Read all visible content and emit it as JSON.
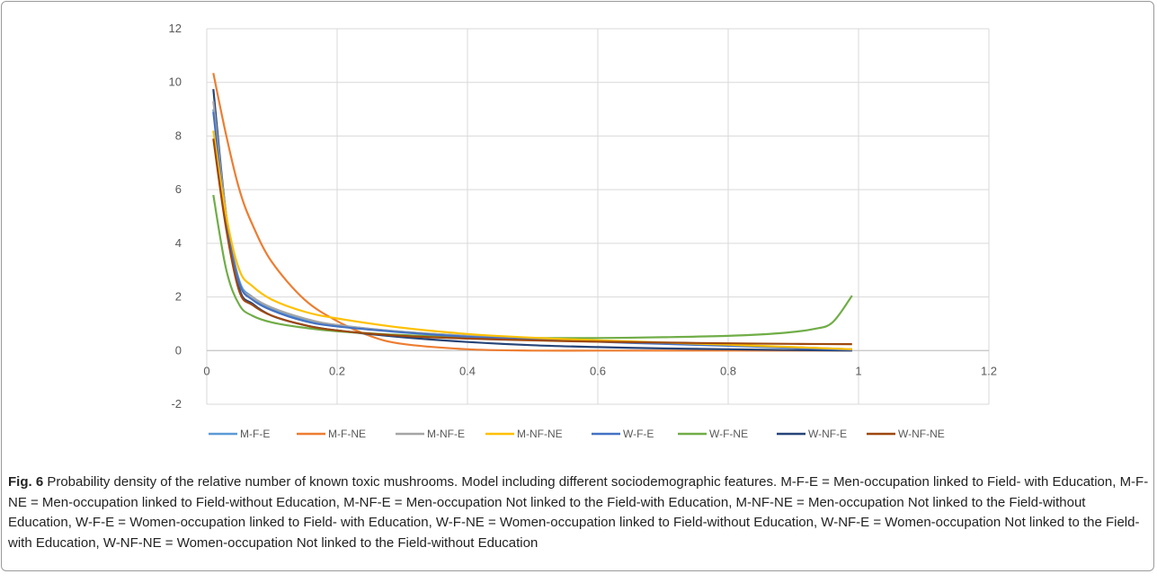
{
  "caption": {
    "label": "Fig. 6",
    "text": " Probability density of the relative number of known toxic mushrooms. Model including different sociodemographic features. M-F-E = Men-occupation linked to Field- with Education, M-F-NE = Men-occupation linked to Field-without Education, M-NF-E = Men-occupation Not linked to the Field-with Education, M-NF-NE = Men-occupation Not linked to the Field-without Education, W-F-E = Women-occupation linked to Field- with Education, W-F-NE = Women-occupation linked to Field-without Education, W-NF-E = Women-occupation Not linked to the Field-with Education, W-NF-NE = Women-occupation Not linked to the Field-without Education"
  },
  "chart_data": {
    "type": "line",
    "title": "",
    "xlabel": "",
    "ylabel": "",
    "xlim": [
      0,
      1.2
    ],
    "ylim": [
      -2,
      12
    ],
    "xticks": [
      0,
      0.2,
      0.4,
      0.6,
      0.8,
      1,
      1.2
    ],
    "yticks": [
      -2,
      0,
      2,
      4,
      6,
      8,
      10,
      12
    ],
    "xtick_labels": [
      "0",
      "0.2",
      "0.4",
      "0.6",
      "0.8",
      "1",
      "1.2"
    ],
    "ytick_labels": [
      "-2",
      "0",
      "2",
      "4",
      "6",
      "8",
      "10",
      "12"
    ],
    "grid": true,
    "legend_position": "bottom",
    "series": [
      {
        "name": "M-F-E",
        "color": "#5b9bd5",
        "x": [
          0.01,
          0.03,
          0.05,
          0.07,
          0.1,
          0.15,
          0.2,
          0.3,
          0.4,
          0.5,
          0.6,
          0.7,
          0.8,
          0.9,
          0.99
        ],
        "y": [
          9.0,
          5.0,
          2.6,
          2.0,
          1.55,
          1.15,
          0.95,
          0.7,
          0.55,
          0.45,
          0.35,
          0.27,
          0.2,
          0.12,
          0.05
        ]
      },
      {
        "name": "M-F-NE",
        "color": "#ed7d31",
        "x": [
          0.01,
          0.03,
          0.05,
          0.07,
          0.1,
          0.15,
          0.2,
          0.25,
          0.3,
          0.4,
          0.5,
          0.6,
          0.7,
          0.8,
          0.9,
          0.99
        ],
        "y": [
          10.35,
          8.0,
          6.0,
          4.7,
          3.3,
          1.9,
          1.1,
          0.55,
          0.25,
          0.05,
          0.0,
          0.0,
          0.0,
          0.0,
          0.0,
          0.0
        ]
      },
      {
        "name": "M-NF-E",
        "color": "#a5a5a5",
        "x": [
          0.01,
          0.03,
          0.05,
          0.07,
          0.1,
          0.15,
          0.2,
          0.3,
          0.4,
          0.5,
          0.6,
          0.7,
          0.8,
          0.9,
          0.99
        ],
        "y": [
          9.3,
          5.0,
          2.5,
          2.0,
          1.6,
          1.2,
          0.95,
          0.7,
          0.55,
          0.45,
          0.35,
          0.27,
          0.2,
          0.12,
          0.05
        ]
      },
      {
        "name": "M-NF-NE",
        "color": "#ffc000",
        "x": [
          0.01,
          0.03,
          0.05,
          0.07,
          0.1,
          0.15,
          0.2,
          0.3,
          0.4,
          0.5,
          0.6,
          0.7,
          0.8,
          0.9,
          0.99
        ],
        "y": [
          8.2,
          5.0,
          3.0,
          2.4,
          1.9,
          1.45,
          1.2,
          0.85,
          0.62,
          0.48,
          0.38,
          0.3,
          0.22,
          0.13,
          0.05
        ]
      },
      {
        "name": "W-F-E",
        "color": "#4472c4",
        "x": [
          0.01,
          0.03,
          0.05,
          0.07,
          0.1,
          0.15,
          0.2,
          0.3,
          0.4,
          0.5,
          0.6,
          0.7,
          0.8,
          0.9,
          0.99
        ],
        "y": [
          8.9,
          4.8,
          2.5,
          1.9,
          1.5,
          1.1,
          0.9,
          0.68,
          0.52,
          0.42,
          0.33,
          0.25,
          0.18,
          0.1,
          0.03
        ]
      },
      {
        "name": "W-F-NE",
        "color": "#70ad47",
        "x": [
          0.01,
          0.03,
          0.05,
          0.07,
          0.1,
          0.15,
          0.2,
          0.3,
          0.4,
          0.5,
          0.6,
          0.7,
          0.8,
          0.88,
          0.93,
          0.96,
          0.99
        ],
        "y": [
          5.8,
          3.0,
          1.7,
          1.3,
          1.05,
          0.85,
          0.72,
          0.58,
          0.5,
          0.47,
          0.47,
          0.5,
          0.55,
          0.65,
          0.8,
          1.05,
          2.05
        ]
      },
      {
        "name": "W-NF-E",
        "color": "#264478",
        "x": [
          0.01,
          0.03,
          0.05,
          0.07,
          0.1,
          0.15,
          0.2,
          0.3,
          0.4,
          0.5,
          0.6,
          0.7,
          0.8,
          0.9,
          0.99
        ],
        "y": [
          9.75,
          5.0,
          2.3,
          1.75,
          1.3,
          0.95,
          0.75,
          0.5,
          0.32,
          0.2,
          0.13,
          0.08,
          0.05,
          0.02,
          0.0
        ]
      },
      {
        "name": "W-NF-NE",
        "color": "#9e480e",
        "x": [
          0.01,
          0.03,
          0.05,
          0.07,
          0.1,
          0.15,
          0.2,
          0.3,
          0.4,
          0.5,
          0.6,
          0.7,
          0.8,
          0.9,
          0.99
        ],
        "y": [
          7.9,
          4.5,
          2.2,
          1.7,
          1.3,
          0.95,
          0.75,
          0.55,
          0.45,
          0.38,
          0.33,
          0.3,
          0.27,
          0.25,
          0.24
        ]
      }
    ]
  }
}
